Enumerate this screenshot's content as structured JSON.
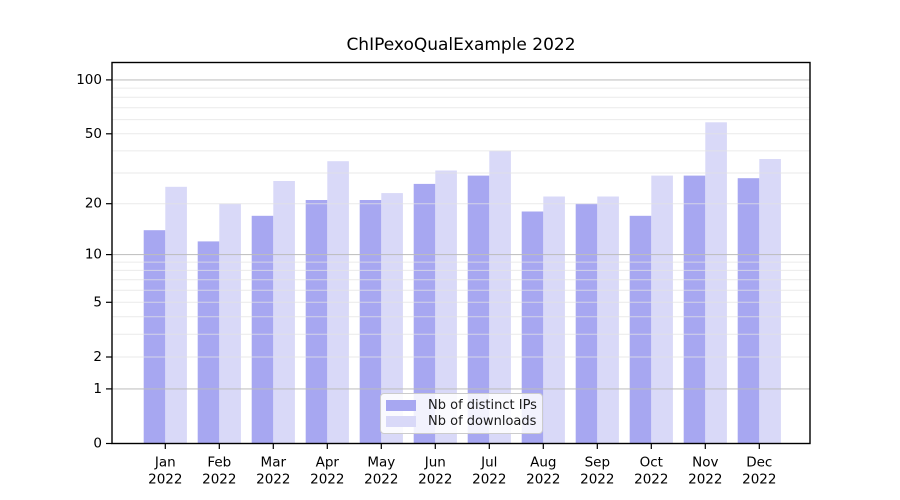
{
  "title": "ChIPexoQualExample 2022",
  "chart_data": {
    "type": "bar",
    "title": "ChIPexoQualExample 2022",
    "categories": [
      "Jan",
      "Feb",
      "Mar",
      "Apr",
      "May",
      "Jun",
      "Jul",
      "Aug",
      "Sep",
      "Oct",
      "Nov",
      "Dec"
    ],
    "year_label": "2022",
    "series": [
      {
        "name": "Nb of distinct IPs",
        "color": "#a7a7f1",
        "values": [
          14,
          12,
          17,
          21,
          21,
          26,
          29,
          18,
          20,
          17,
          29,
          28
        ]
      },
      {
        "name": "Nb of downloads",
        "color": "#d9d9f8",
        "values": [
          25,
          20,
          27,
          35,
          23,
          31,
          40,
          22,
          22,
          29,
          58,
          36
        ]
      }
    ],
    "xlabel": "",
    "ylabel": "",
    "yscale": "log10(1+x)",
    "ylim": [
      0,
      125
    ],
    "yticks": [
      0,
      1,
      2,
      5,
      10,
      20,
      50,
      100
    ],
    "grid_major_values": [
      1,
      10,
      100
    ],
    "grid_minor_values": [
      2,
      3,
      4,
      5,
      6,
      7,
      8,
      9,
      20,
      30,
      40,
      50,
      60,
      70,
      80,
      90
    ],
    "legend_position": "inside lower center"
  },
  "legend": {
    "items": [
      {
        "label": "Nb of distinct IPs",
        "color": "#a7a7f1"
      },
      {
        "label": "Nb of downloads",
        "color": "#d9d9f8"
      }
    ]
  },
  "colors": {
    "distinct_ips_bar": "#a7a7f1",
    "downloads_bar": "#d9d9f8",
    "grid_major": "#bdbdbd",
    "grid_minor": "#e3e3e3",
    "axis": "#000000"
  }
}
